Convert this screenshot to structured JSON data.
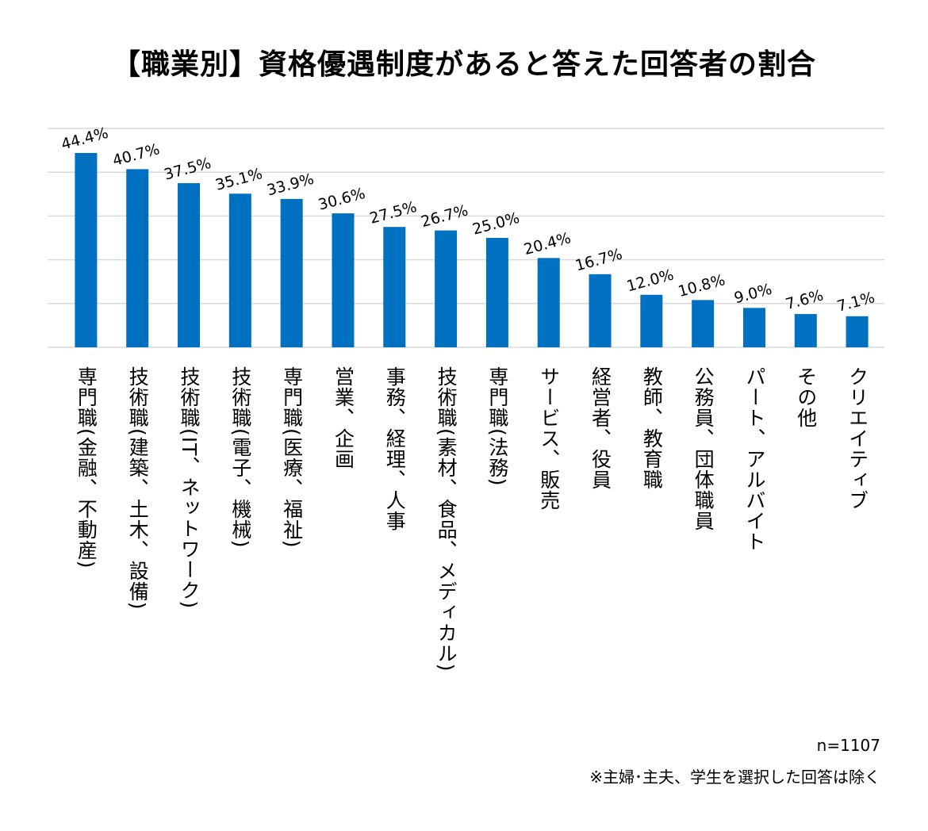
{
  "chart_data": {
    "type": "bar",
    "title": "【職業別】資格優遇制度があると答えた回答者の割合",
    "categories": [
      "専門職(金融、不動産)",
      "技術職(建築、土木、設備)",
      "技術職(IT、ネットワーク)",
      "技術職(電子、機械)",
      "専門職(医療、福祉)",
      "営業、企画",
      "事務、経理、人事",
      "技術職(素材、食品、メディカル)",
      "専門職(法務)",
      "サービス、販売",
      "経営者、役員",
      "教師、教育職",
      "公務員、団体職員",
      "パート、アルバイト",
      "その他",
      "クリエイティブ"
    ],
    "values": [
      44.4,
      40.7,
      37.5,
      35.1,
      33.9,
      30.6,
      27.5,
      26.7,
      25.0,
      20.4,
      16.7,
      12.0,
      10.8,
      9.0,
      7.6,
      7.1
    ],
    "labels": [
      "44.4%",
      "40.7%",
      "37.5%",
      "35.1%",
      "33.9%",
      "30.6%",
      "27.5%",
      "26.7%",
      "25.0%",
      "20.4%",
      "16.7%",
      "12.0%",
      "10.8%",
      "9.0%",
      "7.6%",
      "7.1%"
    ],
    "ylim": [
      0,
      50
    ],
    "grid": true,
    "y_axis_visible": false,
    "bar_color": "#0070C0",
    "grid_color": "#D9D9D9"
  },
  "footnotes": {
    "n": "n=1107",
    "note": "※主婦･主夫、学生を選択した回答は除く"
  }
}
